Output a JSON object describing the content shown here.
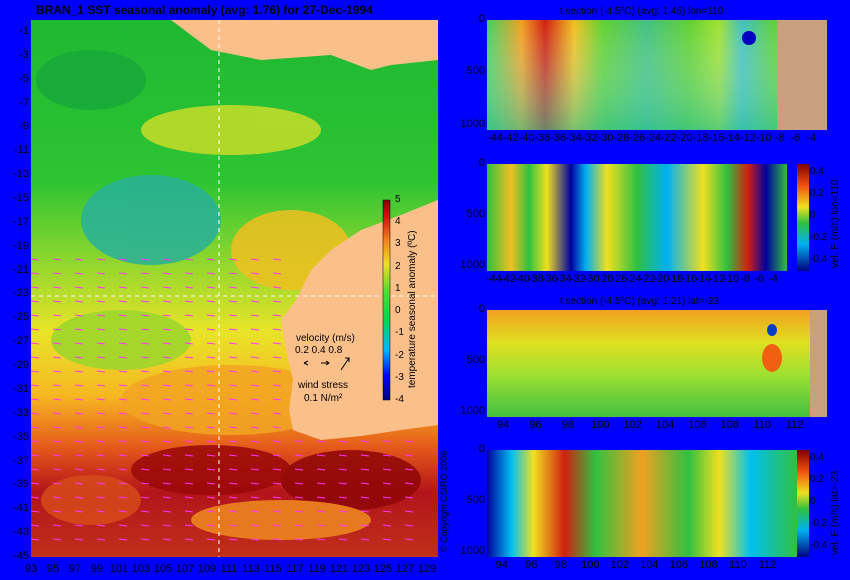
{
  "colors": {
    "background": "#0000ff",
    "land": "#fbc08a",
    "section_land": "#c8a080",
    "vector": "#ff33ff",
    "guide": "#ffffff"
  },
  "map": {
    "title": "BRAN_1 SST seasonal anomaly (avg: 1.76) for 27-Dec-1994",
    "colorbar_label": "temperature seasonal anomaly (ºC)",
    "colorbar_ticks": [
      "5",
      "4",
      "3",
      "2",
      "1",
      "0",
      "-1",
      "-2",
      "-3",
      "-4"
    ],
    "velocity_title": "velocity (m/s)",
    "velocity_scale": "0.2 0.4 0.8",
    "wind_title": "wind stress",
    "wind_scale": "0.1 N/m²",
    "copyright": "© Copyright CSIRO 2006"
  },
  "panels": [
    {
      "title": "t section (-4.5ºC) (avg: 1.46) lon=110",
      "colorbar_label": ""
    },
    {
      "title": "",
      "colorbar_label": "vel. E (m/s) lon=110"
    },
    {
      "title": "t section (-4.5ºC) (avg: 1.21) lat=-23",
      "colorbar_label": ""
    },
    {
      "title": "",
      "colorbar_label": "vel. E (m/s) lat=-23"
    }
  ],
  "vel_colorbar_ticks": [
    "0.4",
    "0.2",
    "0",
    "-0.2",
    "-0.4"
  ],
  "chart_data": [
    {
      "type": "heatmap",
      "title": "BRAN_1 SST seasonal anomaly (avg: 1.76) for 27-Dec-1994",
      "xlim": [
        93,
        130
      ],
      "ylim": [
        -45,
        0
      ],
      "x_ticks": [
        "93",
        "95",
        "97",
        "99",
        "101",
        "103",
        "105",
        "107",
        "109",
        "111",
        "113",
        "115",
        "117",
        "119",
        "121",
        "123",
        "125",
        "127",
        "129"
      ],
      "y_ticks": [
        "-1",
        "-3",
        "-5",
        "-7",
        "-9",
        "-11",
        "-13",
        "-15",
        "-17",
        "-19",
        "-21",
        "-23",
        "-25",
        "-27",
        "-29",
        "-31",
        "-33",
        "-35",
        "-37",
        "-39",
        "-41",
        "-43",
        "-45"
      ],
      "colorbar_range": [
        -4,
        5
      ],
      "guides": {
        "lon": 110,
        "lat": -23
      }
    },
    {
      "type": "heatmap",
      "title": "t section (-4.5ºC) (avg: 1.46) lon=110",
      "x_ticks": [
        "-44",
        "-42",
        "-40",
        "-38",
        "-36",
        "-34",
        "-32",
        "-30",
        "-28",
        "-26",
        "-24",
        "-22",
        "-20",
        "-18",
        "-16",
        "-14",
        "-12",
        "-10",
        "-8",
        "-6",
        "-4"
      ],
      "y_ticks": [
        "0",
        "500",
        "1000"
      ],
      "xlim": [
        -45,
        -2
      ],
      "ylim": [
        1050,
        0
      ]
    },
    {
      "type": "heatmap",
      "title": "",
      "x_ticks": [
        "-44",
        "-42",
        "-40",
        "-38",
        "-36",
        "-34",
        "-32",
        "-30",
        "-28",
        "-26",
        "-24",
        "-22",
        "-20",
        "-18",
        "-16",
        "-14",
        "-12",
        "-10",
        "-8",
        "-6",
        "-4"
      ],
      "y_ticks": [
        "0",
        "500",
        "1000"
      ],
      "xlim": [
        -45,
        -2
      ],
      "ylim": [
        1050,
        0
      ],
      "colorbar_range": [
        -0.4,
        0.4
      ]
    },
    {
      "type": "heatmap",
      "title": "t section (-4.5ºC) (avg: 1.21) lat=-23",
      "x_ticks": [
        "94",
        "96",
        "98",
        "100",
        "102",
        "104",
        "106",
        "108",
        "110",
        "112"
      ],
      "y_ticks": [
        "0",
        "500",
        "1000"
      ],
      "xlim": [
        93,
        114
      ],
      "ylim": [
        1050,
        0
      ]
    },
    {
      "type": "heatmap",
      "title": "",
      "x_ticks": [
        "94",
        "96",
        "98",
        "100",
        "102",
        "104",
        "106",
        "108",
        "110",
        "112"
      ],
      "y_ticks": [
        "0",
        "500",
        "1000"
      ],
      "xlim": [
        93,
        114
      ],
      "ylim": [
        1050,
        0
      ],
      "colorbar_range": [
        -0.4,
        0.4
      ]
    }
  ]
}
